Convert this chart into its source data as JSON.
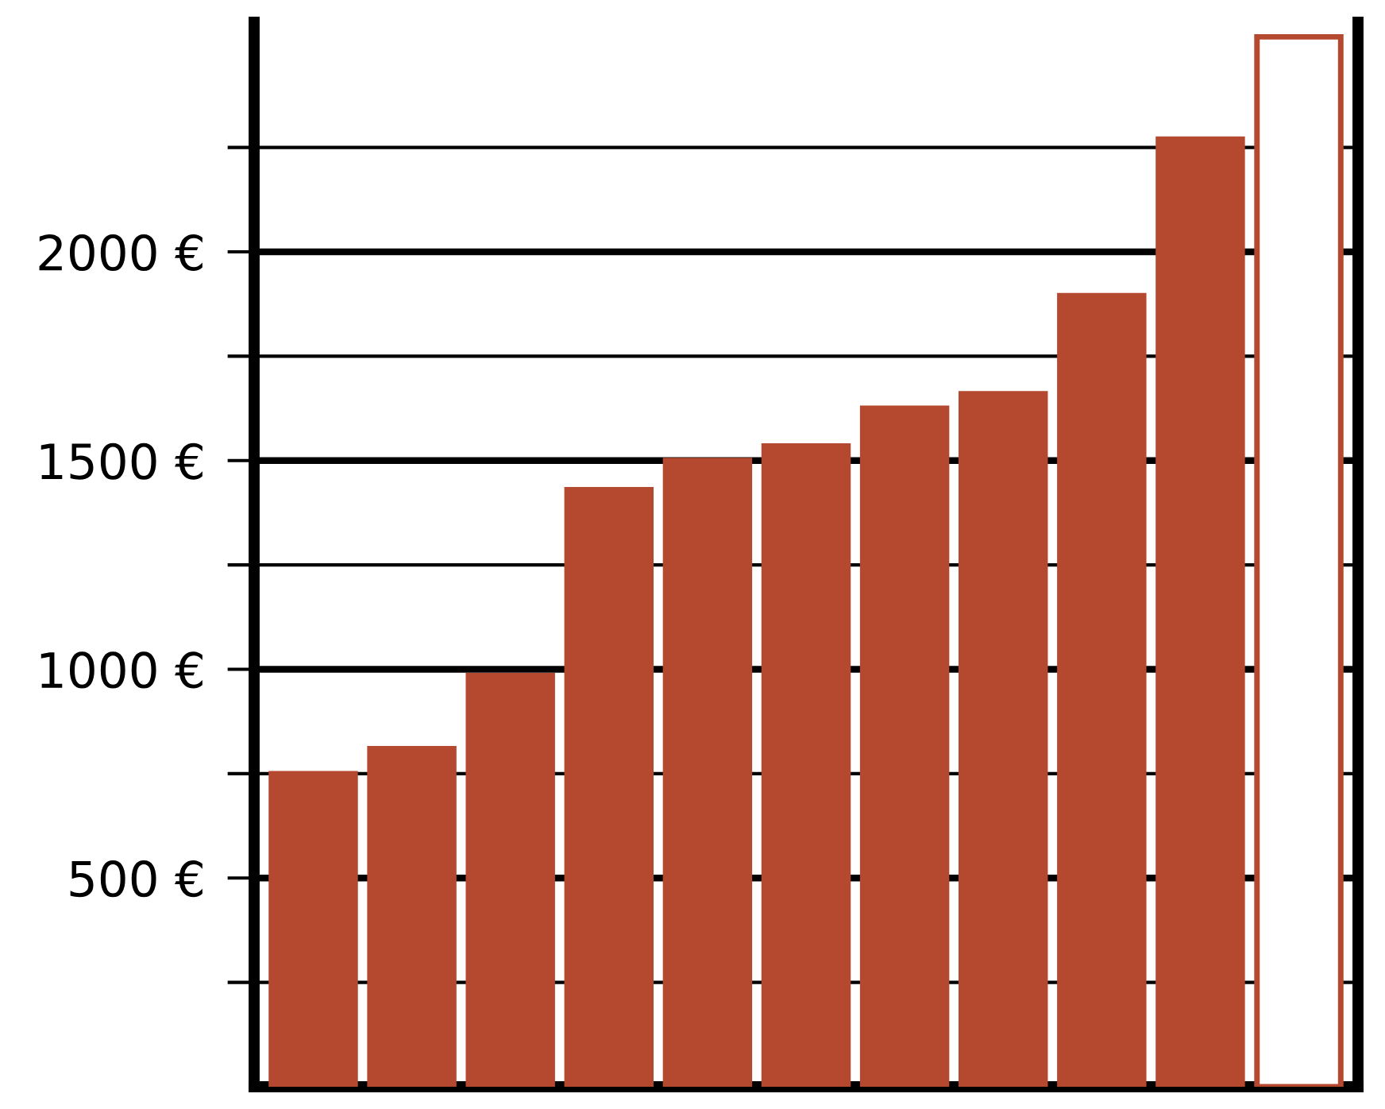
{
  "chart_data": {
    "type": "bar",
    "categories": [
      null,
      null,
      null,
      null,
      null,
      null,
      null,
      null,
      null,
      null,
      null
    ],
    "series": [
      {
        "color": "#b5492f",
        "colors": [
          "#b5492f",
          "#b5492f",
          "#b5492f",
          "#b5492f",
          "#b5492f",
          "#b5492f",
          "#b5492f",
          "#b5492f",
          "#b5492f",
          "#b5492f",
          "#ffffff"
        ],
        "values": [
          750,
          810,
          985,
          1430,
          1500,
          1535,
          1625,
          1660,
          1895,
          2270,
          2515
        ]
      }
    ],
    "ylim": [
      0,
      2550
    ],
    "yticks": [
      {
        "value": 250,
        "label": null
      },
      {
        "value": 500,
        "label": "500 €"
      },
      {
        "value": 750,
        "label": null
      },
      {
        "value": 1000,
        "label": "1000 €"
      },
      {
        "value": 1250,
        "label": null
      },
      {
        "value": 1500,
        "label": "1500 €"
      },
      {
        "value": 1750,
        "label": null
      },
      {
        "value": 2000,
        "label": "2000 €"
      },
      {
        "value": 2250,
        "label": null
      }
    ],
    "grid": "y",
    "tick_labels": "y"
  }
}
